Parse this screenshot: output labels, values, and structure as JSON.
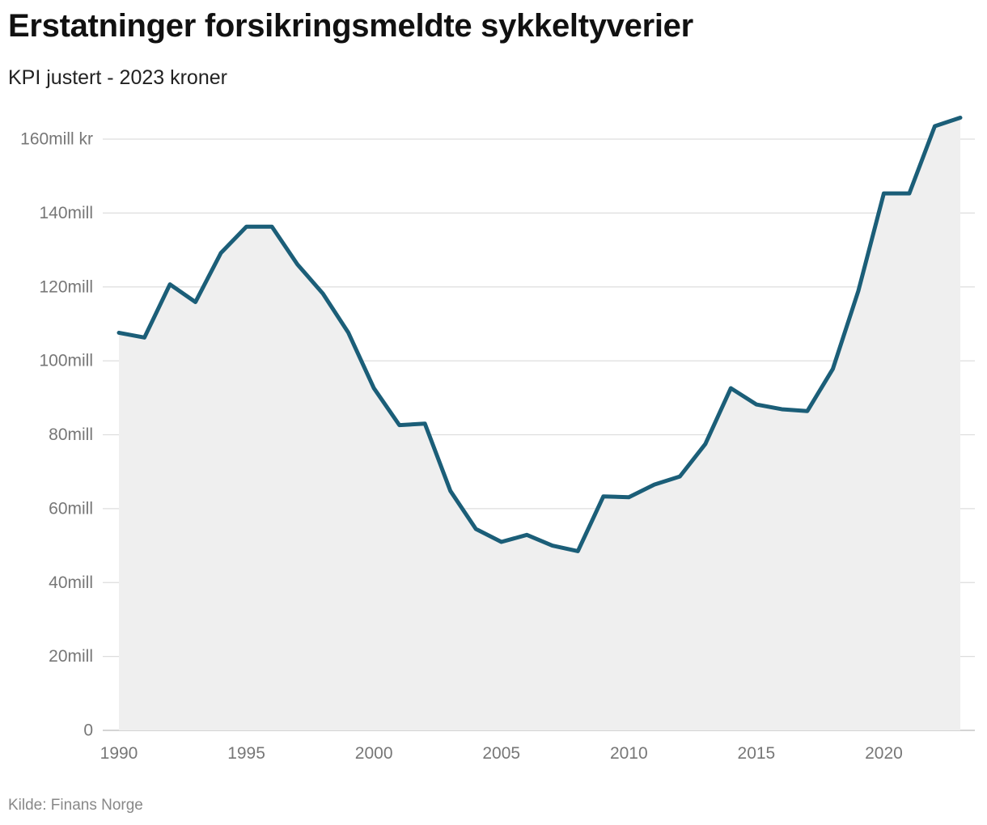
{
  "title": "Erstatninger forsikringsmeldte sykkeltyverier",
  "subtitle": "KPI justert - 2023 kroner",
  "source": "Kilde: Finans Norge",
  "colors": {
    "line": "#1b5e78",
    "area": "#efefef",
    "grid": "#dddddd",
    "tick_text": "#777777"
  },
  "chart_data": {
    "type": "area",
    "title": "Erstatninger forsikringsmeldte sykkeltyverier",
    "subtitle": "KPI justert - 2023 kroner",
    "xlabel": "",
    "ylabel": "",
    "x": [
      1990,
      1991,
      1992,
      1993,
      1994,
      1995,
      1996,
      1997,
      1998,
      1999,
      2000,
      2001,
      2002,
      2003,
      2004,
      2005,
      2006,
      2007,
      2008,
      2009,
      2010,
      2011,
      2012,
      2013,
      2014,
      2015,
      2016,
      2017,
      2018,
      2019,
      2020,
      2021,
      2022,
      2023
    ],
    "values": [
      107.6,
      106.3,
      120.7,
      115.9,
      129.2,
      136.3,
      136.3,
      126.1,
      118.2,
      107.6,
      92.6,
      82.6,
      83.0,
      64.8,
      54.5,
      51.0,
      52.9,
      50.0,
      48.5,
      63.3,
      63.1,
      66.5,
      68.7,
      77.5,
      92.6,
      88.2,
      86.9,
      86.4,
      97.8,
      118.9,
      145.3,
      145.3,
      163.5,
      165.8
    ],
    "xlim": [
      1990,
      2023
    ],
    "ylim": [
      0,
      160
    ],
    "x_ticks": [
      1990,
      1995,
      2000,
      2005,
      2010,
      2015,
      2020
    ],
    "y_ticks": [
      {
        "value": 0,
        "label": "0"
      },
      {
        "value": 20,
        "label": "20mill"
      },
      {
        "value": 40,
        "label": "40mill"
      },
      {
        "value": 60,
        "label": "60mill"
      },
      {
        "value": 80,
        "label": "80mill"
      },
      {
        "value": 100,
        "label": "100mill"
      },
      {
        "value": 120,
        "label": "120mill"
      },
      {
        "value": 140,
        "label": "140mill"
      },
      {
        "value": 160,
        "label": "160mill kr"
      }
    ],
    "grid": true,
    "legend": "none"
  }
}
